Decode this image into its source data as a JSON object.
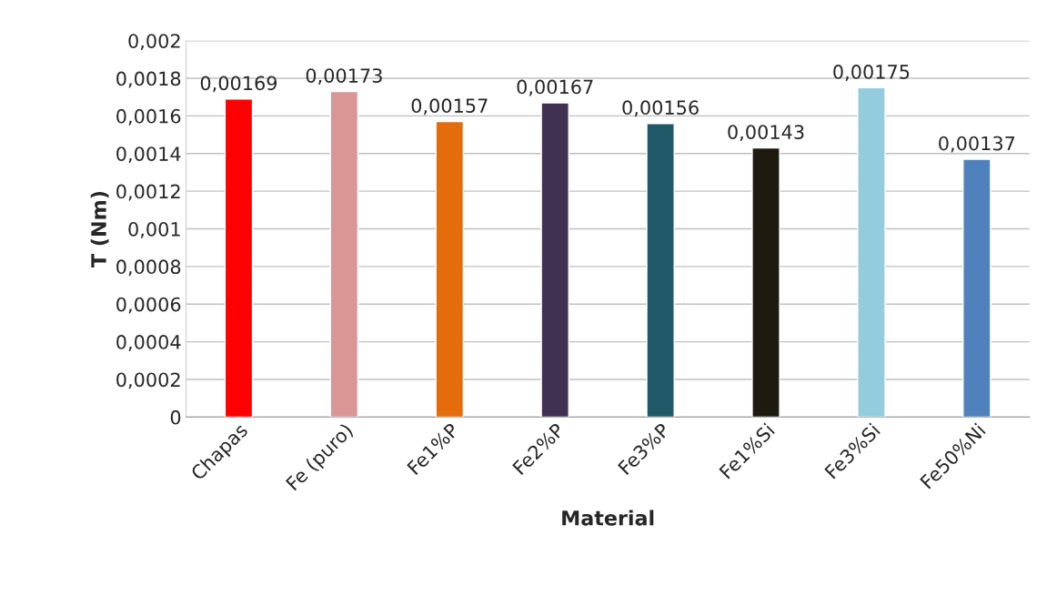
{
  "chart_data": {
    "type": "bar",
    "xlabel": "Material",
    "ylabel": "T (Nm)",
    "categories": [
      "Chapas",
      "Fe (puro)",
      "Fe1%P",
      "Fe2%P",
      "Fe3%P",
      "Fe1%Si",
      "Fe3%Si",
      "Fe50%Ni"
    ],
    "values": [
      0.00169,
      0.00173,
      0.00157,
      0.00167,
      0.00156,
      0.00143,
      0.00175,
      0.00137
    ],
    "value_labels": [
      "0,00169",
      "0,00173",
      "0,00157",
      "0,00167",
      "0,00156",
      "0,00143",
      "0,00175",
      "0,00137"
    ],
    "colors": [
      "#ff0000",
      "#d99694",
      "#e46c0a",
      "#403152",
      "#215968",
      "#1d1b10",
      "#93cddd",
      "#4f81bd"
    ],
    "ylim": [
      0,
      0.002
    ],
    "yticks": [
      0,
      {
        "value": 0.0002,
        "label": "0,0002"
      },
      {
        "value": 0.0004,
        "label": "0,0004"
      },
      {
        "value": 0.0006,
        "label": "0,0006"
      },
      {
        "value": 0.0008,
        "label": "0,0008"
      },
      {
        "value": 0.001,
        "label": "0,001"
      },
      {
        "value": 0.0012,
        "label": "0,0012"
      },
      {
        "value": 0.0014,
        "label": "0,0014"
      },
      {
        "value": 0.0016,
        "label": "0,0016"
      },
      {
        "value": 0.0018,
        "label": "0,0018"
      },
      {
        "value": 0.002,
        "label": "0,002"
      }
    ],
    "grid": "y"
  }
}
